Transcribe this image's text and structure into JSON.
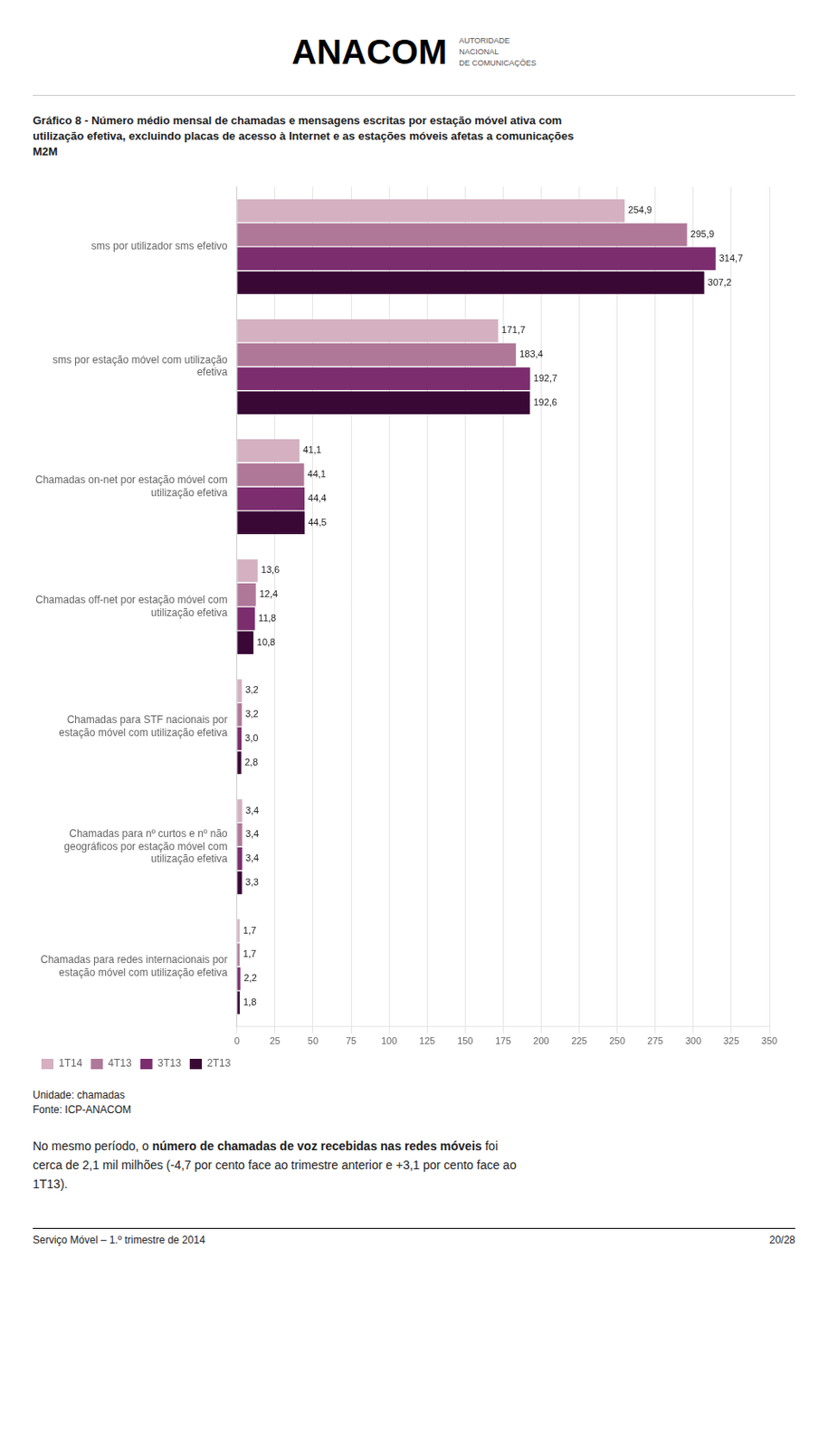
{
  "chart_data": {
    "type": "bar",
    "orientation": "horizontal",
    "title": "Gráfico 8 - Número médio mensal de chamadas e mensagens escritas por estação móvel ativa com\nutilização efetiva, excluindo placas de acesso à Internet e as estações móveis afetas a comunicações\nM2M",
    "categories": [
      "sms por utilizador sms efetivo",
      "sms por estação móvel com utilização\nefetiva",
      "Chamadas on-net por estação móvel com\nutilização efetiva",
      "Chamadas off-net por estação móvel com\nutilização efetiva",
      "Chamadas para STF nacionais por\nestação móvel com utilização efetiva",
      "Chamadas para nº curtos e nº não\ngeográficos por estação móvel com\nutilização efetiva",
      "Chamadas para redes internacionais por\nestação móvel com utilização efetiva"
    ],
    "series": [
      {
        "name": "1T14",
        "color": "#d4b0c0",
        "values": [
          254.9,
          171.7,
          41.1,
          13.6,
          3.2,
          3.4,
          1.7
        ],
        "value_labels": [
          "254,9",
          "171,7",
          "41,1",
          "13,6",
          "3,2",
          "3,4",
          "1,7"
        ]
      },
      {
        "name": "4T13",
        "color": "#b07898",
        "values": [
          295.9,
          183.4,
          44.1,
          12.4,
          3.2,
          3.4,
          1.7
        ],
        "value_labels": [
          "295,9",
          "183,4",
          "44,1",
          "12,4",
          "3,2",
          "3,4",
          "1,7"
        ]
      },
      {
        "name": "3T13",
        "color": "#7b2d6e",
        "values": [
          314.7,
          192.7,
          44.4,
          11.8,
          3.0,
          3.4,
          2.2
        ],
        "value_labels": [
          "314,7",
          "192,7",
          "44,4",
          "11,8",
          "3,0",
          "3,4",
          "2,2"
        ]
      },
      {
        "name": "2T13",
        "color": "#3a0835",
        "values": [
          307.2,
          192.6,
          44.5,
          10.8,
          2.8,
          3.3,
          1.8
        ],
        "value_labels": [
          "307,2",
          "192,6",
          "44,5",
          "10,8",
          "2,8",
          "3,3",
          "1,8"
        ]
      }
    ],
    "xlim": [
      0,
      350
    ],
    "xticks": [
      0,
      25,
      50,
      75,
      100,
      125,
      150,
      175,
      200,
      225,
      250,
      275,
      300,
      325,
      350
    ],
    "grid": true,
    "legend": "bottom left",
    "data_labels": true,
    "annotations": [
      "ANACOM",
      "AUTORIDADE",
      "NACIONAL",
      "DE COMUNICAÇÕES",
      "Unidade: chamadas",
      "Fonte: ICP-ANACOM",
      "No mesmo período, o",
      "número de chamadas de voz recebidas nas redes móveis",
      "foi",
      "cerca de 2,1 mil milhões (-4,7 por cento face ao trimestre anterior e +3,1 por cento face ao",
      "1T13).",
      "Serviço Móvel – 1.º trimestre de 2014",
      "20/28"
    ]
  }
}
